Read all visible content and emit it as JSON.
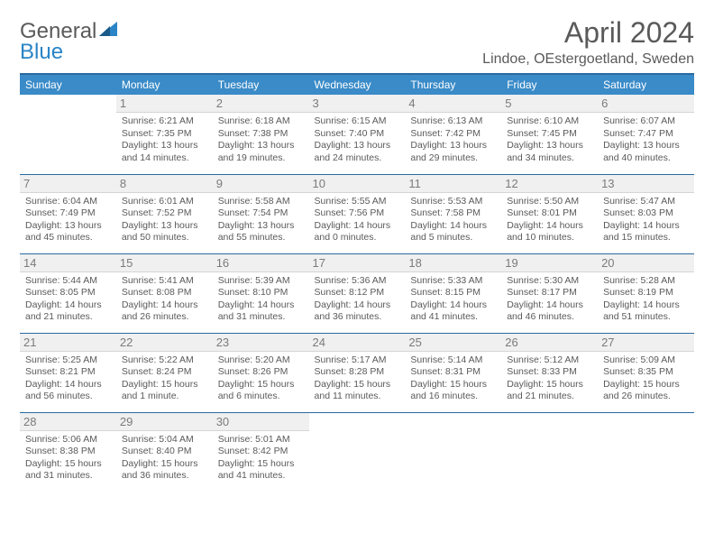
{
  "logo": {
    "word1": "General",
    "word2": "Blue"
  },
  "title": "April 2024",
  "location": "Lindoe, OEstergoetland, Sweden",
  "colors": {
    "header_bg": "#3a8bc8",
    "divider": "#2a6aa0",
    "daynum_bg": "#f0f0f0",
    "text": "#5a5a5a",
    "logo_accent": "#2a84c6"
  },
  "dayHeaders": [
    "Sunday",
    "Monday",
    "Tuesday",
    "Wednesday",
    "Thursday",
    "Friday",
    "Saturday"
  ],
  "grid": {
    "firstWeekday": 1,
    "daysInMonth": 30
  },
  "days": {
    "1": {
      "sunrise": "6:21 AM",
      "sunset": "7:35 PM",
      "daylight": "13 hours and 14 minutes."
    },
    "2": {
      "sunrise": "6:18 AM",
      "sunset": "7:38 PM",
      "daylight": "13 hours and 19 minutes."
    },
    "3": {
      "sunrise": "6:15 AM",
      "sunset": "7:40 PM",
      "daylight": "13 hours and 24 minutes."
    },
    "4": {
      "sunrise": "6:13 AM",
      "sunset": "7:42 PM",
      "daylight": "13 hours and 29 minutes."
    },
    "5": {
      "sunrise": "6:10 AM",
      "sunset": "7:45 PM",
      "daylight": "13 hours and 34 minutes."
    },
    "6": {
      "sunrise": "6:07 AM",
      "sunset": "7:47 PM",
      "daylight": "13 hours and 40 minutes."
    },
    "7": {
      "sunrise": "6:04 AM",
      "sunset": "7:49 PM",
      "daylight": "13 hours and 45 minutes."
    },
    "8": {
      "sunrise": "6:01 AM",
      "sunset": "7:52 PM",
      "daylight": "13 hours and 50 minutes."
    },
    "9": {
      "sunrise": "5:58 AM",
      "sunset": "7:54 PM",
      "daylight": "13 hours and 55 minutes."
    },
    "10": {
      "sunrise": "5:55 AM",
      "sunset": "7:56 PM",
      "daylight": "14 hours and 0 minutes."
    },
    "11": {
      "sunrise": "5:53 AM",
      "sunset": "7:58 PM",
      "daylight": "14 hours and 5 minutes."
    },
    "12": {
      "sunrise": "5:50 AM",
      "sunset": "8:01 PM",
      "daylight": "14 hours and 10 minutes."
    },
    "13": {
      "sunrise": "5:47 AM",
      "sunset": "8:03 PM",
      "daylight": "14 hours and 15 minutes."
    },
    "14": {
      "sunrise": "5:44 AM",
      "sunset": "8:05 PM",
      "daylight": "14 hours and 21 minutes."
    },
    "15": {
      "sunrise": "5:41 AM",
      "sunset": "8:08 PM",
      "daylight": "14 hours and 26 minutes."
    },
    "16": {
      "sunrise": "5:39 AM",
      "sunset": "8:10 PM",
      "daylight": "14 hours and 31 minutes."
    },
    "17": {
      "sunrise": "5:36 AM",
      "sunset": "8:12 PM",
      "daylight": "14 hours and 36 minutes."
    },
    "18": {
      "sunrise": "5:33 AM",
      "sunset": "8:15 PM",
      "daylight": "14 hours and 41 minutes."
    },
    "19": {
      "sunrise": "5:30 AM",
      "sunset": "8:17 PM",
      "daylight": "14 hours and 46 minutes."
    },
    "20": {
      "sunrise": "5:28 AM",
      "sunset": "8:19 PM",
      "daylight": "14 hours and 51 minutes."
    },
    "21": {
      "sunrise": "5:25 AM",
      "sunset": "8:21 PM",
      "daylight": "14 hours and 56 minutes."
    },
    "22": {
      "sunrise": "5:22 AM",
      "sunset": "8:24 PM",
      "daylight": "15 hours and 1 minute."
    },
    "23": {
      "sunrise": "5:20 AM",
      "sunset": "8:26 PM",
      "daylight": "15 hours and 6 minutes."
    },
    "24": {
      "sunrise": "5:17 AM",
      "sunset": "8:28 PM",
      "daylight": "15 hours and 11 minutes."
    },
    "25": {
      "sunrise": "5:14 AM",
      "sunset": "8:31 PM",
      "daylight": "15 hours and 16 minutes."
    },
    "26": {
      "sunrise": "5:12 AM",
      "sunset": "8:33 PM",
      "daylight": "15 hours and 21 minutes."
    },
    "27": {
      "sunrise": "5:09 AM",
      "sunset": "8:35 PM",
      "daylight": "15 hours and 26 minutes."
    },
    "28": {
      "sunrise": "5:06 AM",
      "sunset": "8:38 PM",
      "daylight": "15 hours and 31 minutes."
    },
    "29": {
      "sunrise": "5:04 AM",
      "sunset": "8:40 PM",
      "daylight": "15 hours and 36 minutes."
    },
    "30": {
      "sunrise": "5:01 AM",
      "sunset": "8:42 PM",
      "daylight": "15 hours and 41 minutes."
    }
  },
  "labels": {
    "sunrise_prefix": "Sunrise: ",
    "sunset_prefix": "Sunset: ",
    "daylight_prefix": "Daylight: "
  }
}
